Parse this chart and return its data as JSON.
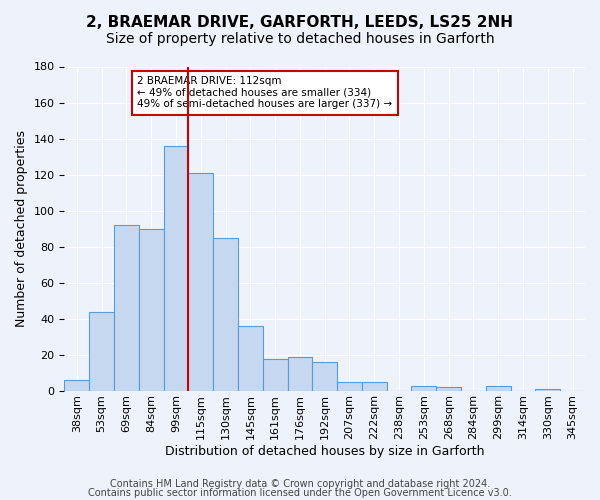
{
  "title": "2, BRAEMAR DRIVE, GARFORTH, LEEDS, LS25 2NH",
  "subtitle": "Size of property relative to detached houses in Garforth",
  "xlabel": "Distribution of detached houses by size in Garforth",
  "ylabel": "Number of detached properties",
  "bin_labels": [
    "38sqm",
    "53sqm",
    "69sqm",
    "84sqm",
    "99sqm",
    "115sqm",
    "130sqm",
    "145sqm",
    "161sqm",
    "176sqm",
    "192sqm",
    "207sqm",
    "222sqm",
    "238sqm",
    "253sqm",
    "268sqm",
    "284sqm",
    "299sqm",
    "314sqm",
    "330sqm",
    "345sqm"
  ],
  "bar_values": [
    6,
    44,
    92,
    90,
    136,
    121,
    85,
    36,
    18,
    19,
    16,
    5,
    5,
    0,
    3,
    2,
    0,
    3,
    0,
    1,
    0
  ],
  "bar_color": "#c5d8f0",
  "bar_edge_color": "#5b9bd5",
  "ylim": [
    0,
    180
  ],
  "yticks": [
    0,
    20,
    40,
    60,
    80,
    100,
    120,
    140,
    160,
    180
  ],
  "vline_color": "#cc0000",
  "annotation_title": "2 BRAEMAR DRIVE: 112sqm",
  "annotation_line1": "← 49% of detached houses are smaller (334)",
  "annotation_line2": "49% of semi-detached houses are larger (337) →",
  "annotation_box_color": "#ffffff",
  "annotation_box_edge": "#cc0000",
  "footer_line1": "Contains HM Land Registry data © Crown copyright and database right 2024.",
  "footer_line2": "Contains public sector information licensed under the Open Government Licence v3.0.",
  "background_color": "#eef3fb",
  "grid_color": "#ffffff",
  "title_fontsize": 11,
  "subtitle_fontsize": 10,
  "axis_label_fontsize": 9,
  "tick_fontsize": 8,
  "footer_fontsize": 7
}
